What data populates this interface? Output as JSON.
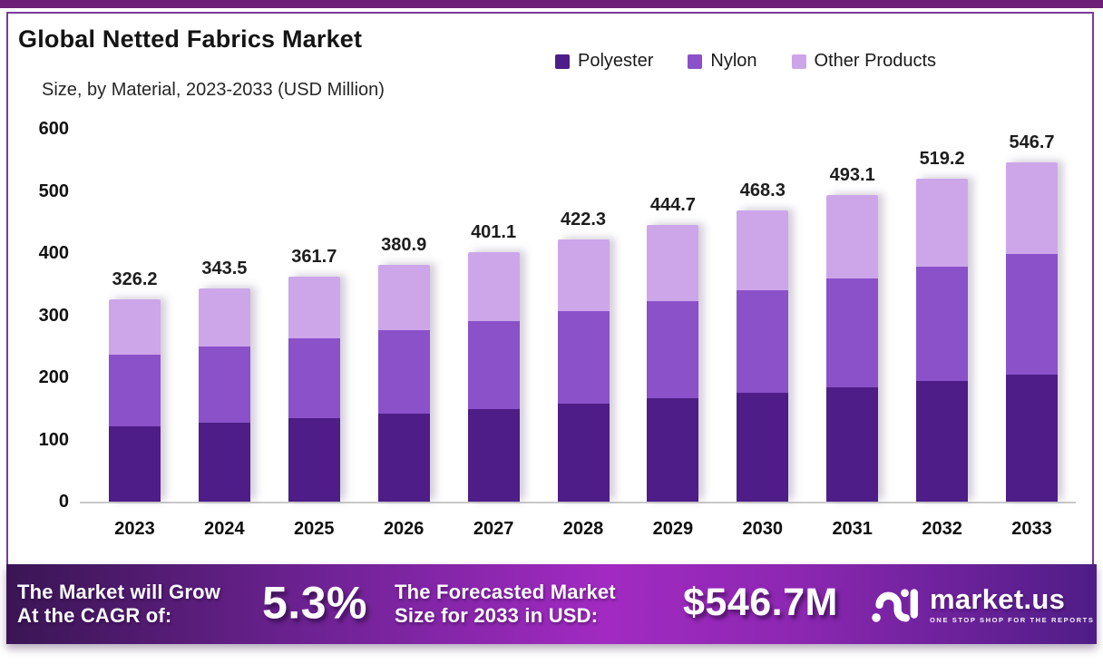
{
  "header": {
    "title": "Global Netted Fabrics Market",
    "subtitle": "Size, by Material, 2023-2033 (USD Million)"
  },
  "legend": [
    {
      "label": "Polyester",
      "color": "#4e1d87"
    },
    {
      "label": "Nylon",
      "color": "#8a51c9"
    },
    {
      "label": "Other Products",
      "color": "#cda6ea"
    }
  ],
  "chart_data": {
    "type": "bar",
    "stacked": true,
    "title": "Global Netted Fabrics Market Size, by Material, 2023-2033 (USD Million)",
    "categories": [
      "2023",
      "2024",
      "2025",
      "2026",
      "2027",
      "2028",
      "2029",
      "2030",
      "2031",
      "2032",
      "2033"
    ],
    "series": [
      {
        "name": "Polyester",
        "color": "#4e1d87",
        "values": [
          121.0,
          127.5,
          134.5,
          142.0,
          149.5,
          157.5,
          166.0,
          175.0,
          184.5,
          194.0,
          204.5
        ]
      },
      {
        "name": "Nylon",
        "color": "#8a51c9",
        "values": [
          115.0,
          121.5,
          128.0,
          134.5,
          141.5,
          149.0,
          157.0,
          165.0,
          174.0,
          183.5,
          193.5
        ]
      },
      {
        "name": "Other Products",
        "color": "#cda6ea",
        "values": [
          90.2,
          94.5,
          99.2,
          104.4,
          110.1,
          115.8,
          121.7,
          128.3,
          134.6,
          141.7,
          148.7
        ]
      }
    ],
    "totals": [
      326.2,
      343.5,
      361.7,
      380.9,
      401.1,
      422.3,
      444.7,
      468.3,
      493.1,
      519.2,
      546.7
    ],
    "xlabel": "",
    "ylabel": "",
    "ylim": [
      0,
      600
    ],
    "yticks": [
      0,
      100,
      200,
      300,
      400,
      500,
      600
    ],
    "legend_position": "top-right",
    "grid": false
  },
  "banner": {
    "cagr_label_line1": "The Market will Grow",
    "cagr_label_line2": "At the CAGR of:",
    "cagr_value": "5.3%",
    "forecast_label_line1": "The Forecasted Market",
    "forecast_label_line2": "Size for 2033 in USD:",
    "forecast_value": "$546.7M",
    "brand_name": "market.us",
    "brand_tagline": "ONE STOP SHOP FOR THE REPORTS"
  },
  "colors": {
    "top_strip": "#6e2078",
    "card_border": "#7b3a9b",
    "axis_line": "#c9c9c9",
    "banner_gradient_start": "#3a1554",
    "banner_gradient_mid": "#a22ac2",
    "banner_gradient_end": "#4f1d86"
  }
}
